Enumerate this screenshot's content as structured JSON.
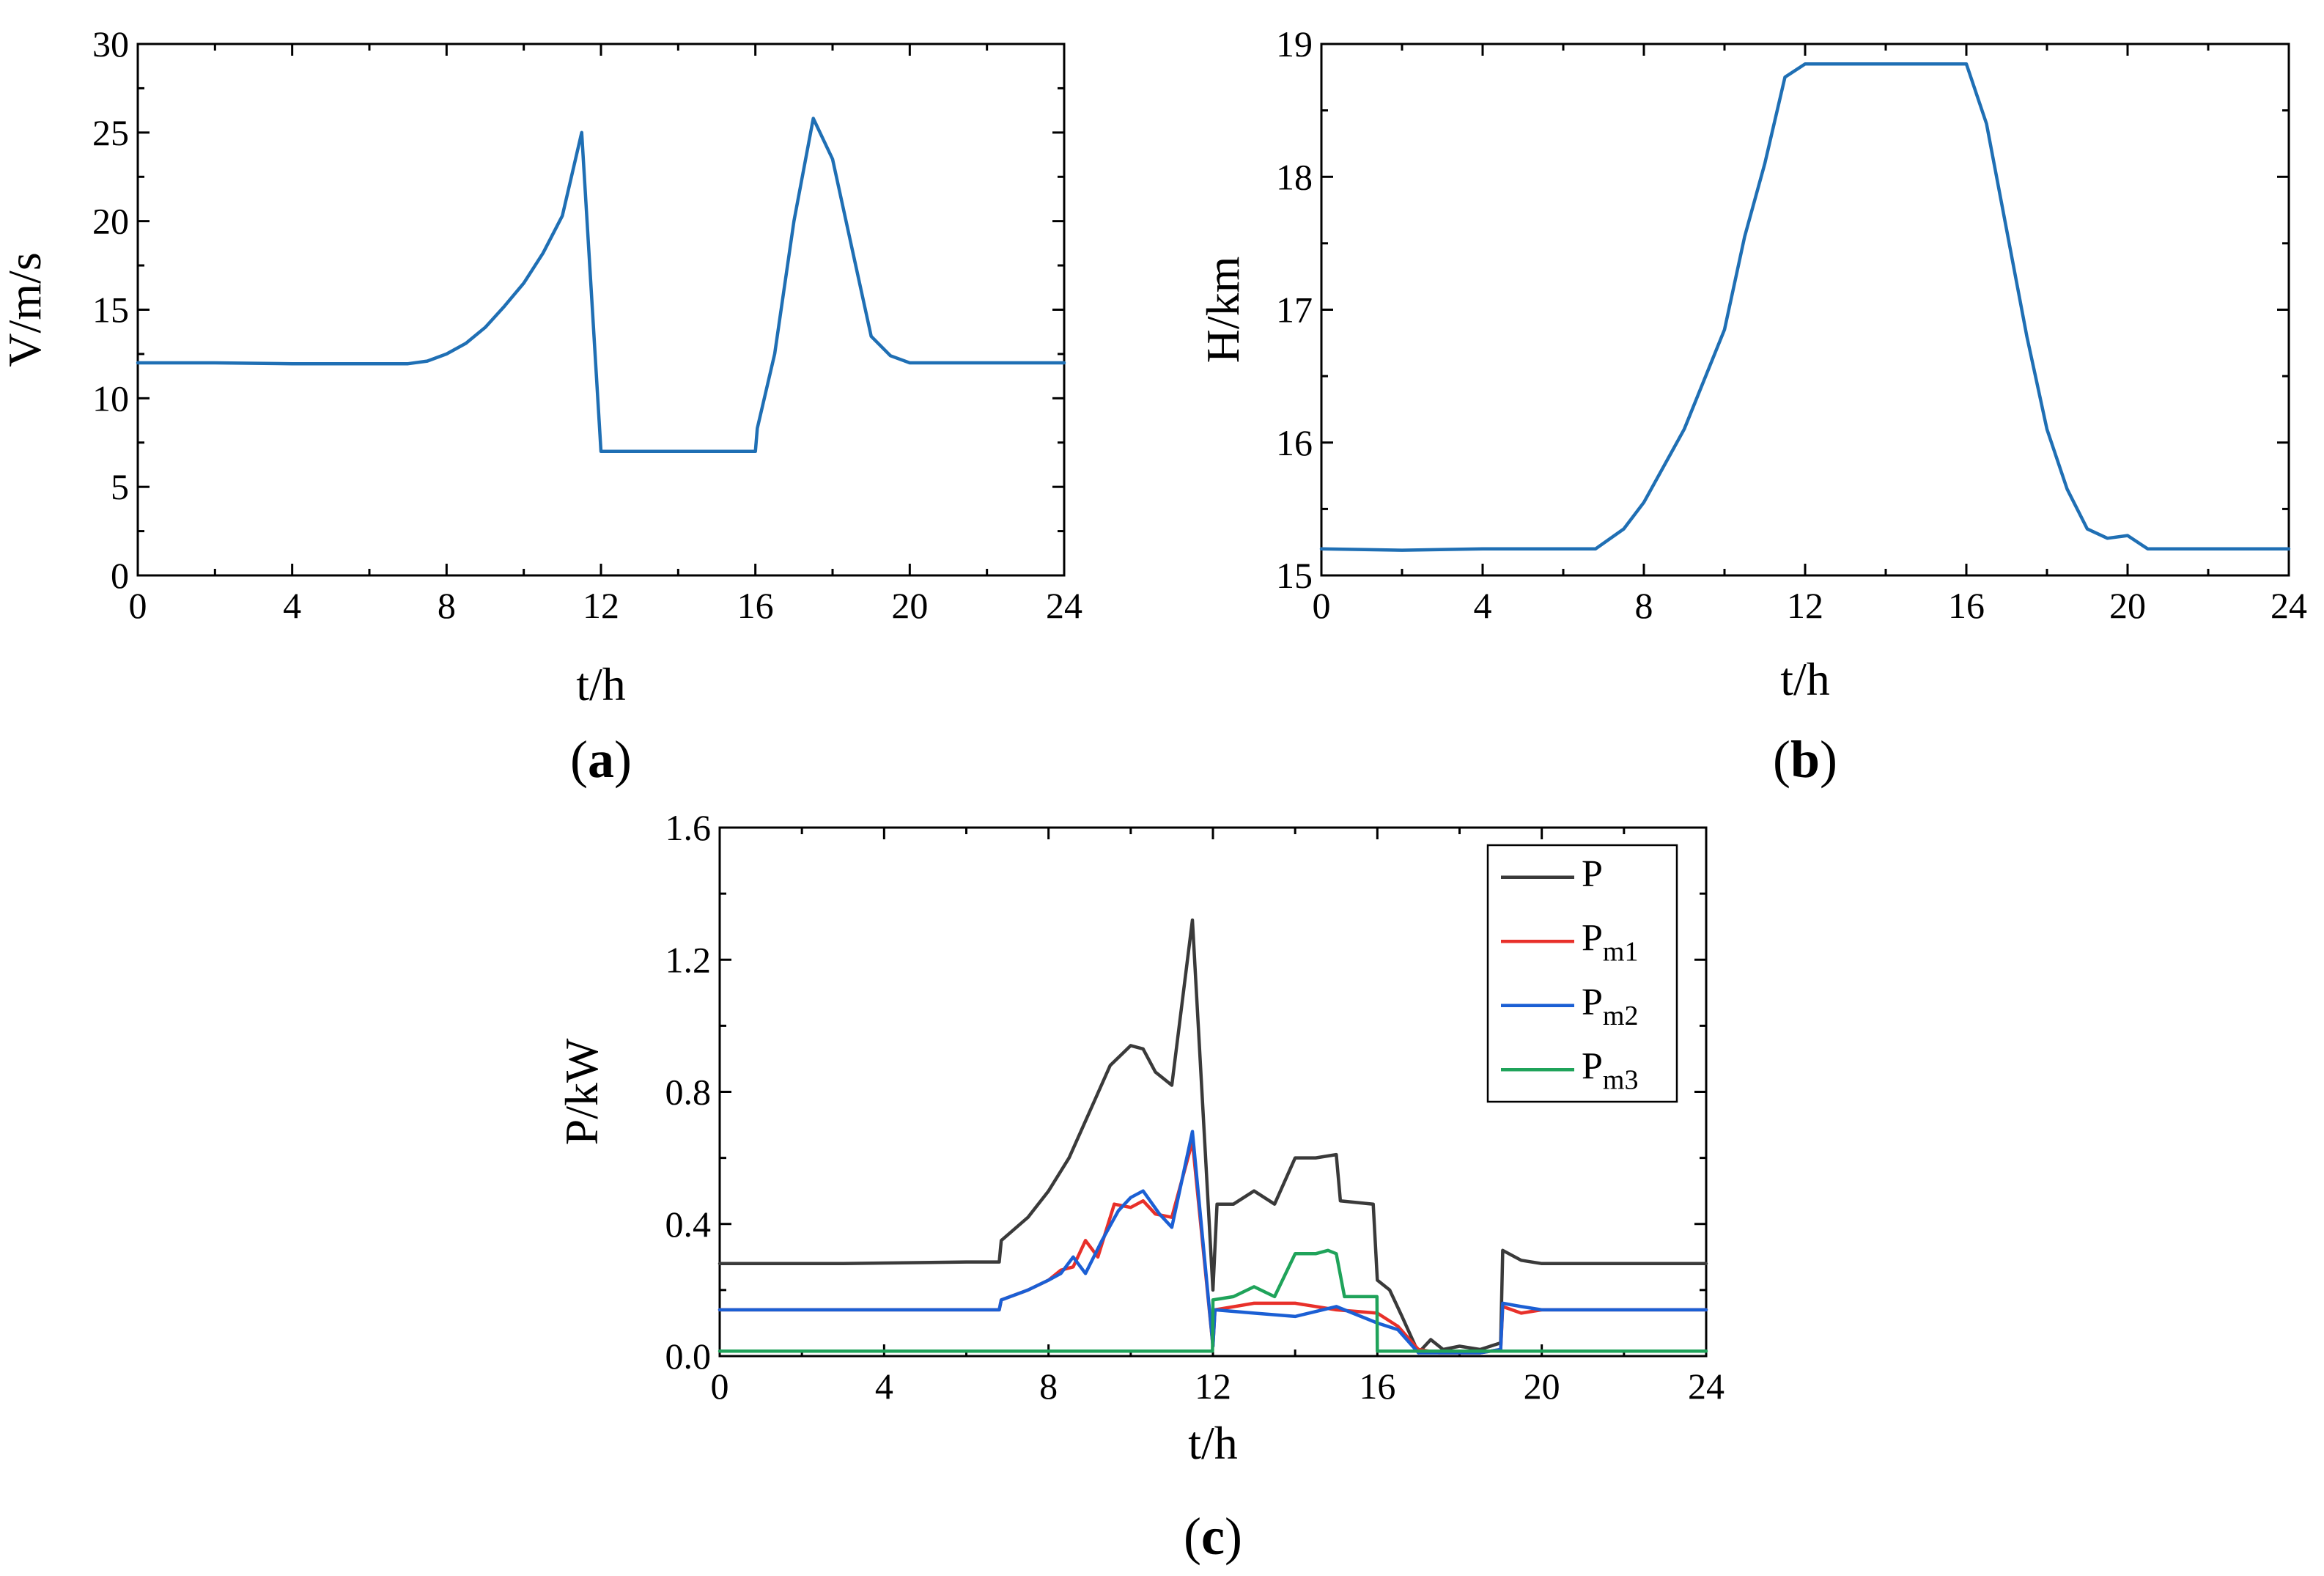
{
  "chart_data": [
    {
      "type": "line",
      "panel": "a",
      "panel_label": {
        "open": "(",
        "letter": "a",
        "close": ")"
      },
      "xlabel": "t/h",
      "ylabel": "V/m/s",
      "xlim": [
        0,
        24
      ],
      "ylim": [
        0,
        30
      ],
      "xticks": [
        0,
        4,
        8,
        12,
        16,
        20,
        24
      ],
      "yticks": [
        0,
        5,
        10,
        15,
        20,
        25,
        30
      ],
      "series": [
        {
          "name": "V",
          "color": "#1f6fb4",
          "x": [
            0,
            2,
            4,
            6,
            7,
            7.5,
            8,
            8.5,
            9,
            9.5,
            10,
            10.5,
            11,
            11.5,
            12,
            13,
            14,
            15,
            16,
            16.05,
            16.5,
            17,
            17.5,
            18,
            18.5,
            19,
            19.5,
            20,
            22,
            24
          ],
          "y": [
            12,
            12,
            11.95,
            11.95,
            11.95,
            12.1,
            12.5,
            13.1,
            14.0,
            15.2,
            16.5,
            18.2,
            20.3,
            25.0,
            7.0,
            7.0,
            7.0,
            7.0,
            7.0,
            8.3,
            12.5,
            20.0,
            25.8,
            23.5,
            18.5,
            13.5,
            12.4,
            12.0,
            12.0,
            12.0
          ]
        }
      ]
    },
    {
      "type": "line",
      "panel": "b",
      "panel_label": {
        "open": "(",
        "letter": "b",
        "close": ")"
      },
      "xlabel": "t/h",
      "ylabel": "H/km",
      "xlim": [
        0,
        24
      ],
      "ylim": [
        15,
        19
      ],
      "xticks": [
        0,
        4,
        8,
        12,
        16,
        20,
        24
      ],
      "yticks": [
        15,
        16,
        17,
        18,
        19
      ],
      "series": [
        {
          "name": "H",
          "color": "#1f6fb4",
          "x": [
            0,
            2,
            4,
            6,
            6.8,
            7.5,
            8,
            9,
            10,
            10.5,
            11,
            11.5,
            12,
            13,
            14,
            15,
            16,
            16.5,
            17,
            17.5,
            18,
            18.5,
            19,
            19.5,
            20,
            20.5,
            21,
            22,
            24
          ],
          "y": [
            15.2,
            15.19,
            15.2,
            15.2,
            15.2,
            15.35,
            15.55,
            16.1,
            16.85,
            17.55,
            18.1,
            18.75,
            18.85,
            18.85,
            18.85,
            18.85,
            18.85,
            18.4,
            17.6,
            16.8,
            16.1,
            15.65,
            15.35,
            15.28,
            15.3,
            15.2,
            15.2,
            15.2,
            15.2
          ]
        }
      ]
    },
    {
      "type": "line",
      "panel": "c",
      "panel_label": {
        "open": "(",
        "letter": "c",
        "close": ")"
      },
      "xlabel": "t/h",
      "ylabel": "P/kW",
      "xlim": [
        0,
        24
      ],
      "ylim": [
        0,
        1.6
      ],
      "xticks": [
        0,
        4,
        8,
        12,
        16,
        20,
        24
      ],
      "ytick_labels": [
        "0.0",
        "0.4",
        "0.8",
        "1.2",
        "1.6"
      ],
      "yticks": [
        0,
        0.4,
        0.8,
        1.2,
        1.6
      ],
      "legend_position": "top-right",
      "series": [
        {
          "name": "P",
          "label_main": "P",
          "label_sub": "",
          "color": "#3a3a3a",
          "x": [
            0,
            3,
            6,
            6.8,
            6.85,
            7.5,
            8,
            8.5,
            9,
            9.5,
            10,
            10.3,
            10.6,
            11,
            11.5,
            12,
            12.1,
            12.5,
            13,
            13.5,
            14,
            14.5,
            15,
            15.1,
            15.9,
            16,
            16.3,
            16.6,
            17,
            17.3,
            17.6,
            18,
            18.5,
            19,
            19.05,
            19.5,
            20,
            22,
            24
          ],
          "y": [
            0.28,
            0.28,
            0.285,
            0.285,
            0.35,
            0.42,
            0.5,
            0.6,
            0.74,
            0.88,
            0.94,
            0.93,
            0.86,
            0.82,
            1.32,
            0.2,
            0.46,
            0.46,
            0.5,
            0.46,
            0.6,
            0.6,
            0.61,
            0.47,
            0.46,
            0.23,
            0.2,
            0.12,
            0.01,
            0.05,
            0.02,
            0.03,
            0.02,
            0.04,
            0.32,
            0.29,
            0.28,
            0.28,
            0.28
          ]
        },
        {
          "name": "Pm1",
          "label_main": "P",
          "label_sub": "m1",
          "color": "#e8302a",
          "x": [
            0,
            3,
            6.8,
            6.85,
            7.5,
            8,
            8.3,
            8.6,
            8.9,
            9.2,
            9.6,
            10,
            10.3,
            10.6,
            11,
            11.5,
            12,
            12.05,
            13,
            14,
            15,
            16,
            16.5,
            17,
            17.5,
            18,
            18.5,
            19,
            19.05,
            19.5,
            20,
            22,
            24
          ],
          "y": [
            0.14,
            0.14,
            0.14,
            0.17,
            0.2,
            0.23,
            0.26,
            0.27,
            0.35,
            0.3,
            0.46,
            0.45,
            0.47,
            0.43,
            0.42,
            0.65,
            0.03,
            0.14,
            0.16,
            0.16,
            0.14,
            0.13,
            0.09,
            0.02,
            0.01,
            0.01,
            0.01,
            0.02,
            0.15,
            0.13,
            0.14,
            0.14,
            0.14
          ]
        },
        {
          "name": "Pm2",
          "label_main": "P",
          "label_sub": "m2",
          "color": "#1b5fd4",
          "x": [
            0,
            3,
            6.8,
            6.85,
            7.5,
            8,
            8.3,
            8.6,
            8.9,
            9.3,
            9.7,
            10,
            10.3,
            10.7,
            11,
            11.5,
            12,
            12.05,
            13,
            14,
            15,
            16,
            16.5,
            17,
            17.5,
            18,
            18.5,
            19,
            19.05,
            19.5,
            20,
            22,
            24
          ],
          "y": [
            0.14,
            0.14,
            0.14,
            0.17,
            0.2,
            0.23,
            0.25,
            0.3,
            0.25,
            0.35,
            0.44,
            0.48,
            0.5,
            0.43,
            0.39,
            0.68,
            0.03,
            0.14,
            0.13,
            0.12,
            0.15,
            0.1,
            0.08,
            0.01,
            0.01,
            0.01,
            0.01,
            0.02,
            0.16,
            0.15,
            0.14,
            0.14,
            0.14
          ]
        },
        {
          "name": "Pm3",
          "label_main": "P",
          "label_sub": "m3",
          "color": "#1fa35a",
          "x": [
            0,
            4,
            8,
            11.99,
            12,
            12.5,
            13,
            13.5,
            14,
            14.5,
            14.8,
            15,
            15.2,
            15.99,
            16,
            17,
            18,
            19,
            20,
            24
          ],
          "y": [
            0.015,
            0.015,
            0.015,
            0.015,
            0.17,
            0.18,
            0.21,
            0.18,
            0.31,
            0.31,
            0.32,
            0.31,
            0.18,
            0.18,
            0.015,
            0.015,
            0.015,
            0.015,
            0.015,
            0.015
          ]
        }
      ]
    }
  ]
}
